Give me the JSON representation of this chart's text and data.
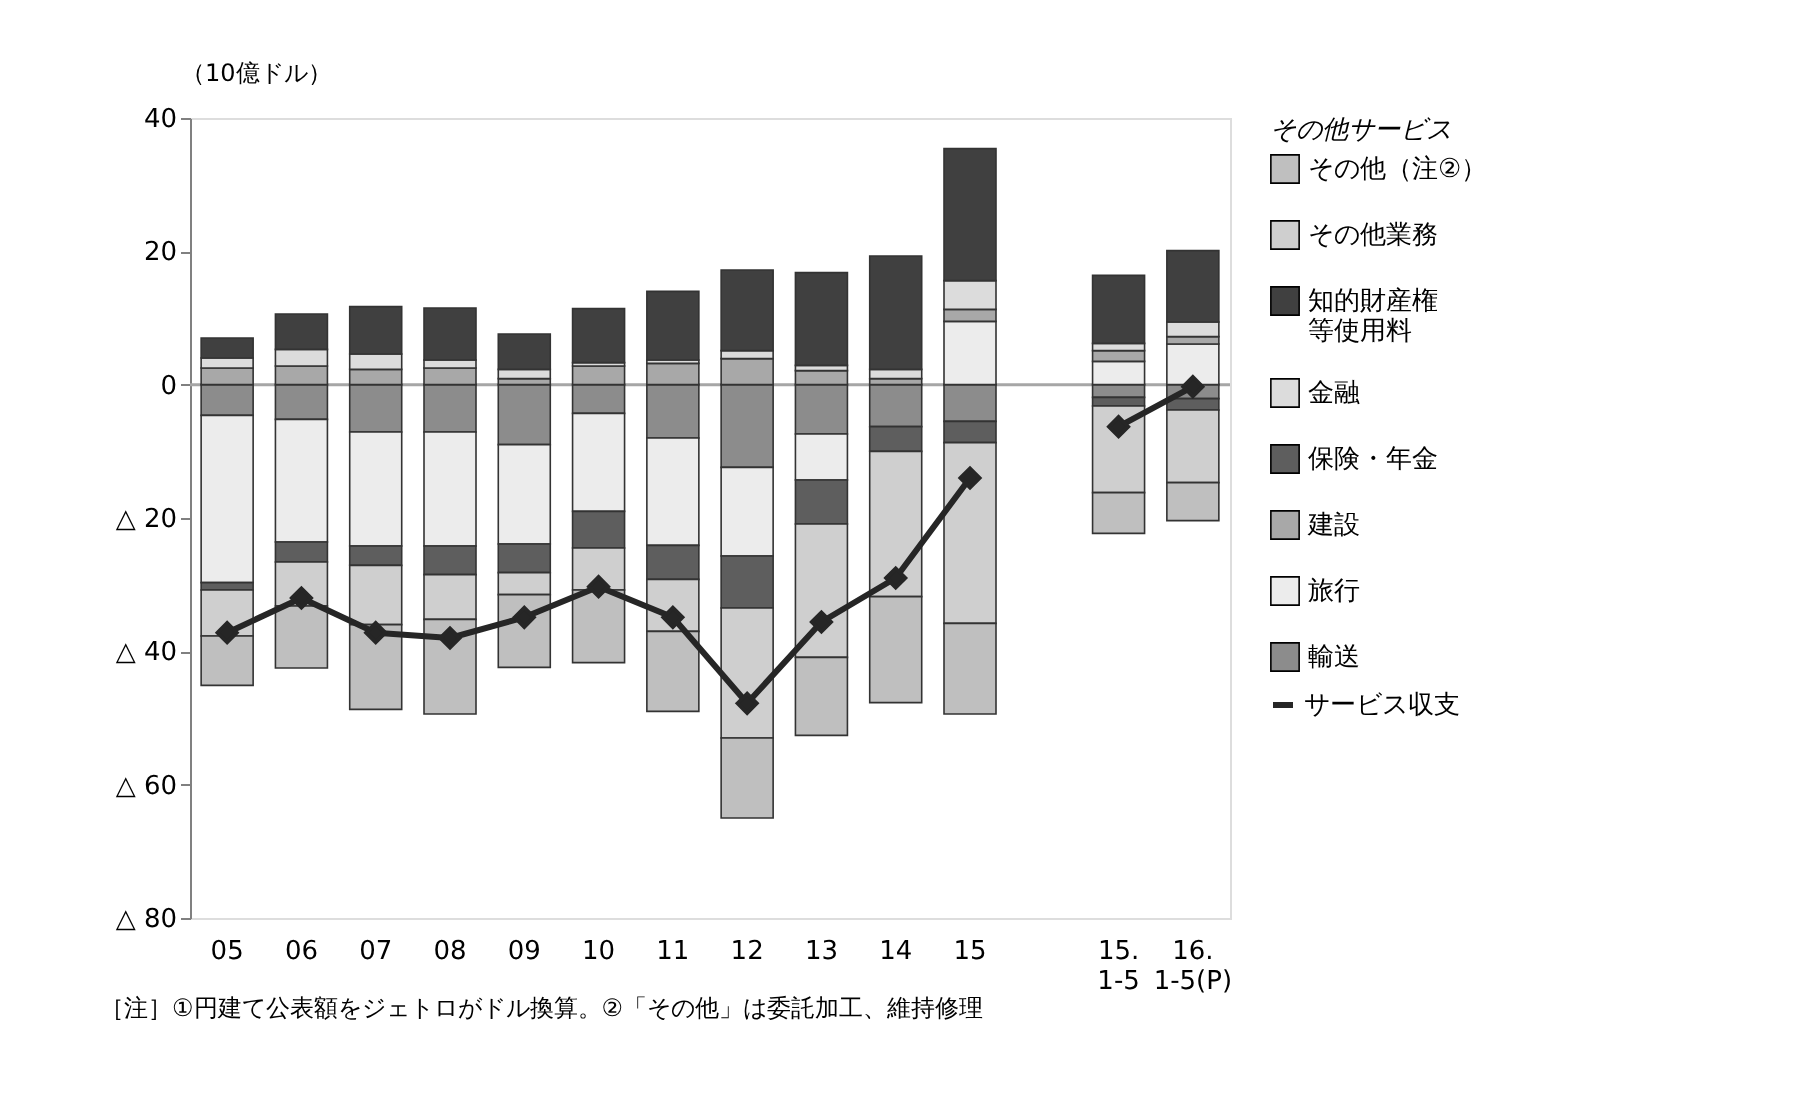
{
  "chart_data": {
    "type": "bar",
    "stacked": true,
    "ylabel": "（10億ドル）",
    "legend_title": "その他サービス",
    "legend": "right",
    "grid": false,
    "categories": [
      "05",
      "06",
      "07",
      "08",
      "09",
      "10",
      "11",
      "12",
      "13",
      "14",
      "15",
      null,
      "15.\n1-5",
      "16.\n1-5(P)"
    ],
    "ylim": [
      -80,
      40
    ],
    "yticks": [
      40,
      20,
      0,
      {
        "value": -20,
        "label": "△ 20"
      },
      {
        "value": -40,
        "label": "△ 40"
      },
      {
        "value": -60,
        "label": "△ 60"
      },
      {
        "value": -80,
        "label": "△ 80"
      }
    ],
    "series": [
      {
        "name": "輸送",
        "color": "#8c8c8c",
        "values": [
          -4.6,
          -5.2,
          -7.1,
          -7.1,
          -9.0,
          -4.3,
          -8.0,
          -12.4,
          -7.4,
          -6.3,
          -5.5,
          null,
          -1.9,
          -2.1
        ]
      },
      {
        "name": "旅行",
        "color": "#ececec",
        "values": [
          -25.1,
          -18.4,
          -17.1,
          -17.1,
          -14.9,
          -14.7,
          -16.1,
          -13.3,
          -6.9,
          null,
          9.5,
          null,
          3.5,
          6.1
        ]
      },
      {
        "name": "建設",
        "color": "#a8a8a8",
        "values": [
          2.5,
          2.8,
          2.3,
          2.5,
          0.9,
          2.8,
          3.2,
          3.9,
          2.1,
          0.9,
          1.8,
          null,
          1.6,
          1.1
        ]
      },
      {
        "name": "保険・年金",
        "color": "#5e5e5e",
        "values": [
          -1.1,
          -3.0,
          -2.9,
          -4.3,
          -4.3,
          -5.5,
          -5.1,
          -7.8,
          -6.6,
          -3.7,
          -3.2,
          null,
          -1.3,
          -1.7
        ]
      },
      {
        "name": "金融",
        "color": "#dcdcdc",
        "values": [
          1.5,
          2.5,
          2.3,
          1.2,
          1.4,
          0.5,
          0.5,
          1.2,
          0.8,
          1.4,
          4.3,
          null,
          1.1,
          2.2
        ]
      },
      {
        "name": "知的財産権等使用料",
        "color": "#404040",
        "values": [
          3.0,
          5.3,
          7.1,
          7.8,
          5.3,
          8.1,
          10.3,
          12.1,
          13.9,
          17.0,
          19.8,
          null,
          10.2,
          10.7
        ]
      },
      {
        "name": "その他業務",
        "color": "#cfcfcf",
        "values": [
          -6.9,
          -6.6,
          -8.9,
          -6.7,
          -3.3,
          -6.3,
          -7.8,
          -19.5,
          -20.0,
          -21.8,
          -27.1,
          null,
          -13.0,
          -10.9
        ]
      },
      {
        "name": "その他（注②）",
        "color": "#bfbfbf",
        "values": [
          -7.4,
          -9.3,
          -12.7,
          -14.2,
          -10.9,
          -10.9,
          -12.0,
          -12.0,
          -11.7,
          -15.9,
          -13.6,
          null,
          -6.1,
          -5.7
        ]
      },
      {
        "name": "サービス収支",
        "type": "line",
        "color": "#262626",
        "marker": "diamond",
        "line_style": "solid",
        "values": [
          -37.2,
          -32.0,
          -37.2,
          -38.0,
          -34.9,
          -30.3,
          -34.9,
          -47.8,
          -35.6,
          -29.0,
          -14.0,
          null,
          -6.3,
          -0.3
        ]
      }
    ],
    "ref_lines": [
      {
        "axis": "y",
        "value": 0,
        "color": "#a6a6a6"
      }
    ],
    "annotations": [
      "［注］①円建て公表額をジェトロがドル換算。②「その他」は委託加工、維持修理"
    ]
  }
}
